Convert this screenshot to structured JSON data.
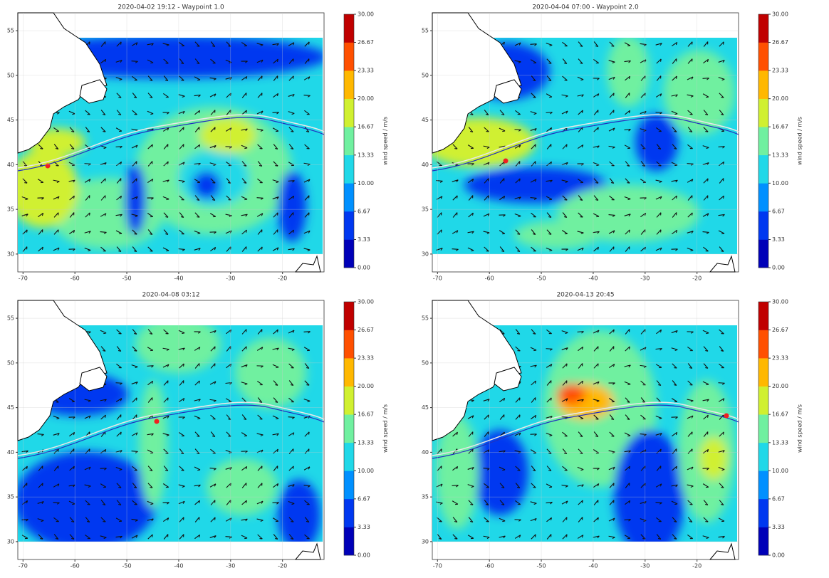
{
  "panels": [
    {
      "title": "2020-04-02 19:12 - Waypoint 1.0",
      "xlim": [
        -71,
        -12
      ],
      "ylim": [
        28,
        57
      ],
      "xticks": [
        -70,
        -60,
        -50,
        -40,
        -30,
        -20
      ],
      "yticks": [
        30,
        35,
        40,
        45,
        50,
        55
      ]
    },
    {
      "title": "2020-04-04 07:00 - Waypoint 2.0",
      "xlim": [
        -71,
        -12
      ],
      "ylim": [
        28,
        57
      ],
      "xticks": [
        -70,
        -60,
        -50,
        -40,
        -30,
        -20
      ],
      "yticks": [
        30,
        35,
        40,
        45,
        50,
        55
      ]
    },
    {
      "title": "2020-04-08 03:12",
      "xlim": [
        -71,
        -12
      ],
      "ylim": [
        28,
        57
      ],
      "xticks": [
        -70,
        -60,
        -50,
        -40,
        -30,
        -20
      ],
      "yticks": [
        30,
        35,
        40,
        45,
        50,
        55
      ]
    },
    {
      "title": "2020-04-13 20:45",
      "xlim": [
        -71,
        -12
      ],
      "ylim": [
        28,
        57
      ],
      "xticks": [
        -70,
        -60,
        -50,
        -40,
        -30,
        -20
      ],
      "yticks": [
        30,
        35,
        40,
        45,
        50,
        55
      ]
    }
  ],
  "colorbar": {
    "label": "wind speed / m/s",
    "lim": [
      0,
      30
    ],
    "ticks": [
      {
        "value": 0,
        "label": "0.00"
      },
      3.33,
      6.67,
      {
        "value": 10,
        "label": "10.00"
      },
      13.33,
      16.67,
      {
        "value": 20,
        "label": "20.00"
      },
      23.33,
      26.67,
      {
        "value": 30,
        "label": "30.00"
      }
    ],
    "colors": [
      "#0000b8",
      "#0038f0",
      "#0090ff",
      "#20d8e8",
      "#70f0a0",
      "#d0f030",
      "#ffb800",
      "#ff5000",
      "#c00000"
    ]
  }
}
